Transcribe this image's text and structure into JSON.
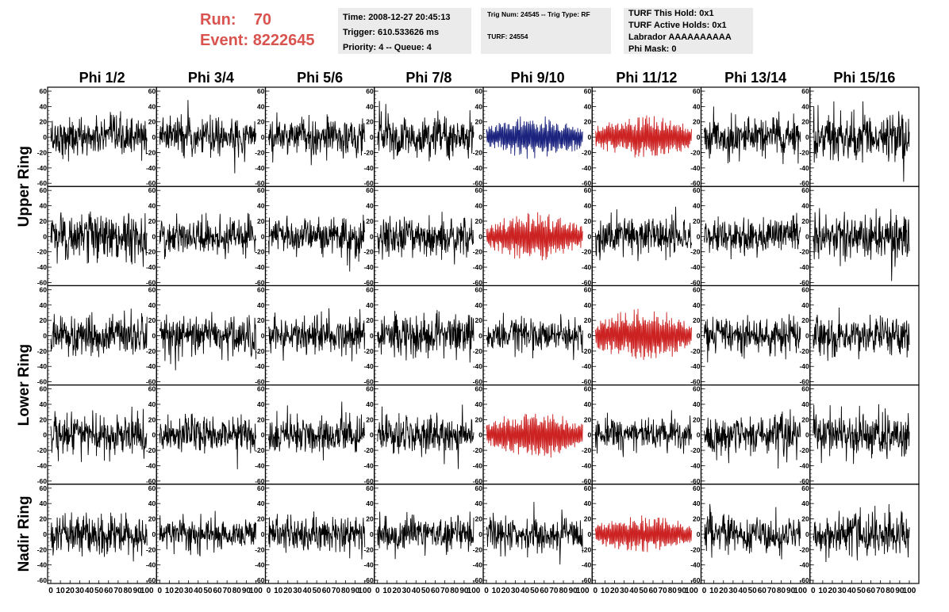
{
  "header": {
    "run_label": "Run:",
    "run_value": "70",
    "event_label": "Event:",
    "event_value": "8222645",
    "time": "Time: 2008-12-27 20:45:13",
    "trigger": "Trigger: 610.533626 ms",
    "priority": "Priority: 4 -- Queue: 4",
    "trig_num": "Trig Num: 24545 -- Trig Type: RF",
    "turf": "TURF: 24554",
    "turf_this_hold": "TURF This Hold: 0x1",
    "turf_active_holds": "TURF Active Holds: 0x1",
    "labrador": "Labrador AAAAAAAAAA",
    "phi_mask": "Phi Mask: 0"
  },
  "chart_data": {
    "type": "line",
    "columns": [
      "Phi 1/2",
      "Phi 3/4",
      "Phi 5/6",
      "Phi 7/8",
      "Phi 9/10",
      "Phi 11/12",
      "Phi 13/14",
      "Phi 15/16"
    ],
    "ring_labels": [
      "Upper Ring",
      "Lower Ring",
      "Nadir Ring"
    ],
    "ylim": [
      -60,
      60
    ],
    "xlim": [
      0,
      100
    ],
    "yticks": [
      -60,
      -40,
      -20,
      0,
      20,
      40,
      60
    ],
    "xticks": [
      0,
      10,
      20,
      30,
      40,
      50,
      60,
      70,
      80,
      90,
      100
    ],
    "trace_colors": {
      "normal": "#000000",
      "triggered": "#cc2222",
      "highlight": "#1a237e"
    },
    "panel_states": [
      [
        "normal",
        "normal",
        "normal",
        "normal",
        "highlight",
        "triggered",
        "normal",
        "normal"
      ],
      [
        "normal",
        "normal",
        "normal",
        "normal",
        "triggered",
        "normal",
        "normal",
        "normal"
      ],
      [
        "normal",
        "normal",
        "normal",
        "normal",
        "normal",
        "triggered",
        "normal",
        "normal"
      ],
      [
        "normal",
        "normal",
        "normal",
        "normal",
        "triggered",
        "normal",
        "normal",
        "normal"
      ],
      [
        "normal",
        "normal",
        "normal",
        "normal",
        "normal",
        "triggered",
        "normal",
        "normal"
      ]
    ],
    "amplitudes": [
      [
        14,
        14,
        14,
        15,
        16,
        16,
        14,
        18
      ],
      [
        17,
        12,
        14,
        15,
        18,
        14,
        13,
        17
      ],
      [
        14,
        14,
        14,
        15,
        12,
        20,
        13,
        14
      ],
      [
        15,
        14,
        14,
        14,
        18,
        12,
        14,
        16
      ],
      [
        14,
        12,
        12,
        13,
        12,
        14,
        13,
        15
      ]
    ],
    "samples_per_trace": 256
  }
}
